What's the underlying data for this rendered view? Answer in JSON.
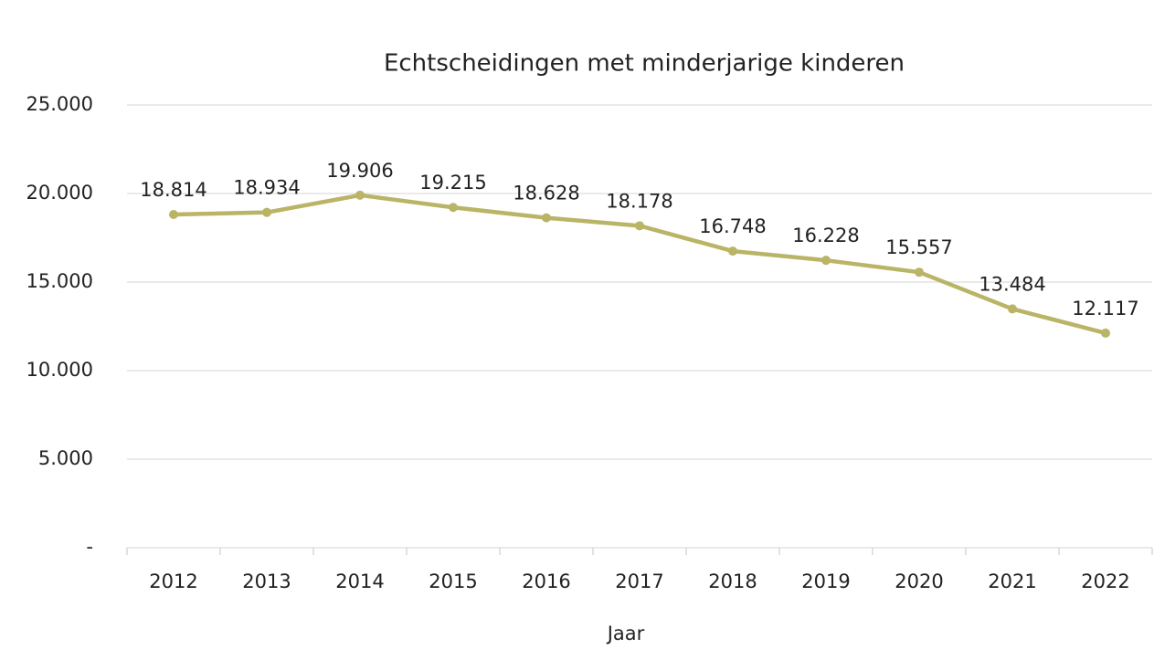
{
  "chart_data": {
    "type": "line",
    "title": "Echtscheidingen met minderjarige kinderen",
    "x_label": "Jaar",
    "categories": [
      "2012",
      "2013",
      "2014",
      "2015",
      "2016",
      "2017",
      "2018",
      "2019",
      "2020",
      "2021",
      "2022"
    ],
    "series": [
      {
        "color": "#b9b466",
        "values": [
          18814,
          18934,
          19906,
          19215,
          18628,
          18178,
          16748,
          16228,
          15557,
          13484,
          12117
        ],
        "value_labels": [
          "18.814",
          "18.934",
          "19.906",
          "19.215",
          "18.628",
          "18.178",
          "16.748",
          "16.228",
          "15.557",
          "13.484",
          "12.117"
        ]
      }
    ],
    "ylim": [
      0,
      25000
    ],
    "yticks": [
      {
        "value": 0,
        "label": "-"
      },
      {
        "value": 5000,
        "label": "5.000"
      },
      {
        "value": 10000,
        "label": "10.000"
      },
      {
        "value": 15000,
        "label": "15.000"
      },
      {
        "value": 20000,
        "label": "20.000"
      },
      {
        "value": 25000,
        "label": "25.000"
      }
    ],
    "grid": true
  }
}
